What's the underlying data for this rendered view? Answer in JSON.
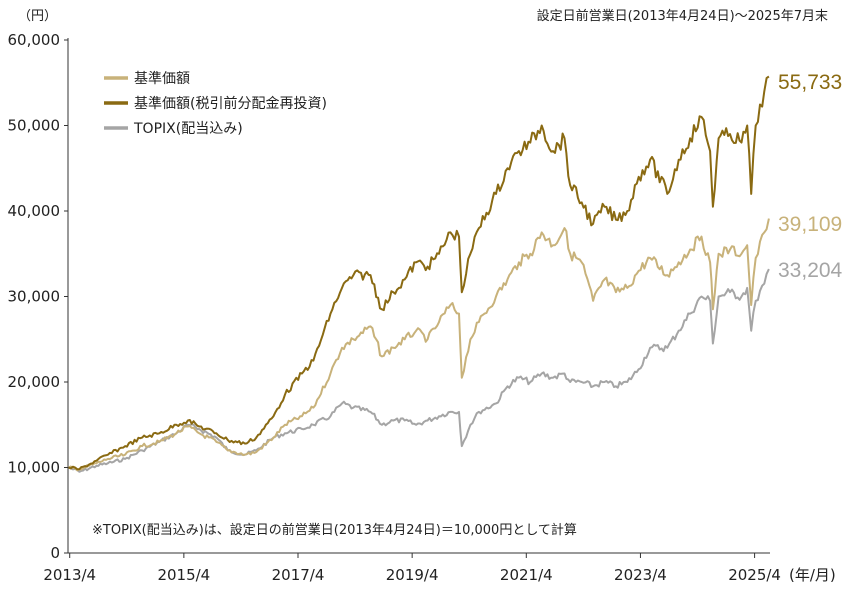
{
  "chart_data": {
    "type": "line",
    "y_unit_label": "（円）",
    "period_note": "設定日前営業日(2013年4月24日)～2025年7月末",
    "footnote": "※TOPIX(配当込み)は、設定日の前営業日(2013年4月24日)＝10,000円として計算",
    "x_unit_label": "(年/月)",
    "ylim": [
      0,
      60000
    ],
    "xlim": [
      2013.3,
      2025.6
    ],
    "y_ticks": [
      0,
      10000,
      20000,
      30000,
      40000,
      50000,
      60000
    ],
    "y_tick_labels": [
      "0",
      "10,000",
      "20,000",
      "30,000",
      "40,000",
      "50,000",
      "60,000"
    ],
    "x_ticks": [
      2013.33,
      2015.33,
      2017.33,
      2019.33,
      2021.33,
      2023.33,
      2025.33
    ],
    "x_tick_labels": [
      "2013/4",
      "2015/4",
      "2017/4",
      "2019/4",
      "2021/4",
      "2023/4",
      "2025/4"
    ],
    "series": [
      {
        "name": "基準価額",
        "color": "#c8b27a",
        "end_label": "39,109",
        "x": [
          2013.31,
          2013.5,
          2013.8,
          2014.0,
          2014.3,
          2014.6,
          2014.9,
          2015.2,
          2015.4,
          2015.6,
          2015.9,
          2016.1,
          2016.4,
          2016.6,
          2016.9,
          2017.1,
          2017.4,
          2017.6,
          2017.9,
          2018.1,
          2018.3,
          2018.6,
          2018.8,
          2019.0,
          2019.2,
          2019.4,
          2019.6,
          2019.8,
          2020.0,
          2020.15,
          2020.2,
          2020.35,
          2020.5,
          2020.8,
          2021.0,
          2021.2,
          2021.4,
          2021.6,
          2021.8,
          2022.0,
          2022.1,
          2022.3,
          2022.5,
          2022.7,
          2022.9,
          2023.1,
          2023.3,
          2023.5,
          2023.8,
          2024.0,
          2024.2,
          2024.4,
          2024.55,
          2024.6,
          2024.7,
          2024.9,
          2025.1,
          2025.2,
          2025.27,
          2025.35,
          2025.5,
          2025.58
        ],
        "values": [
          10000,
          9800,
          10500,
          11000,
          11500,
          12500,
          13000,
          14000,
          14800,
          14000,
          13000,
          12000,
          11500,
          11800,
          13500,
          15000,
          16000,
          17000,
          21000,
          24000,
          25000,
          26500,
          23000,
          24000,
          25000,
          26000,
          25000,
          27000,
          29000,
          28000,
          20500,
          25000,
          27000,
          30000,
          32000,
          34000,
          35000,
          37500,
          36000,
          38000,
          35000,
          34000,
          29500,
          32000,
          30500,
          31000,
          33000,
          34500,
          32500,
          34000,
          35500,
          37000,
          34000,
          28500,
          35000,
          35500,
          35000,
          36000,
          29000,
          34500,
          37500,
          39109
        ]
      },
      {
        "name": "基準価額(税引前分配金再投資)",
        "color": "#8a6a12",
        "end_label": "55,733",
        "x": [
          2013.31,
          2013.5,
          2013.8,
          2014.0,
          2014.3,
          2014.6,
          2014.9,
          2015.2,
          2015.4,
          2015.6,
          2015.9,
          2016.1,
          2016.4,
          2016.6,
          2016.9,
          2017.1,
          2017.4,
          2017.6,
          2017.9,
          2018.1,
          2018.3,
          2018.6,
          2018.8,
          2019.0,
          2019.2,
          2019.4,
          2019.6,
          2019.8,
          2020.0,
          2020.15,
          2020.2,
          2020.35,
          2020.5,
          2020.8,
          2021.0,
          2021.2,
          2021.4,
          2021.6,
          2021.8,
          2022.0,
          2022.1,
          2022.3,
          2022.5,
          2022.7,
          2022.9,
          2023.1,
          2023.3,
          2023.5,
          2023.8,
          2024.0,
          2024.2,
          2024.4,
          2024.55,
          2024.6,
          2024.7,
          2024.9,
          2025.1,
          2025.2,
          2025.27,
          2025.35,
          2025.5,
          2025.58
        ],
        "values": [
          10000,
          9800,
          10800,
          11500,
          12500,
          13500,
          14000,
          15000,
          15500,
          14800,
          14000,
          13200,
          12800,
          13500,
          16000,
          18500,
          21000,
          22500,
          28000,
          31000,
          32500,
          32500,
          28500,
          30500,
          32000,
          34000,
          33500,
          35000,
          37500,
          37000,
          30500,
          35000,
          38000,
          42000,
          45000,
          47000,
          48000,
          50000,
          47000,
          48500,
          43000,
          41000,
          38500,
          40500,
          39000,
          40000,
          44000,
          46000,
          42000,
          46000,
          48500,
          51000,
          47000,
          40500,
          48500,
          49000,
          48000,
          50000,
          42000,
          50000,
          54000,
          55733
        ]
      },
      {
        "name": "TOPIX(配当込み)",
        "color": "#a5a5a5",
        "end_label": "33,204",
        "x": [
          2013.31,
          2013.5,
          2013.8,
          2014.0,
          2014.3,
          2014.6,
          2014.9,
          2015.2,
          2015.4,
          2015.6,
          2015.9,
          2016.1,
          2016.4,
          2016.6,
          2016.9,
          2017.1,
          2017.4,
          2017.6,
          2017.9,
          2018.1,
          2018.3,
          2018.6,
          2018.8,
          2019.0,
          2019.2,
          2019.4,
          2019.6,
          2019.8,
          2020.0,
          2020.15,
          2020.2,
          2020.35,
          2020.5,
          2020.8,
          2021.0,
          2021.2,
          2021.4,
          2021.6,
          2021.8,
          2022.0,
          2022.1,
          2022.3,
          2022.5,
          2022.7,
          2022.9,
          2023.1,
          2023.3,
          2023.5,
          2023.8,
          2024.0,
          2024.2,
          2024.4,
          2024.55,
          2024.6,
          2024.7,
          2024.9,
          2025.1,
          2025.2,
          2025.27,
          2025.35,
          2025.5,
          2025.58
        ],
        "values": [
          10000,
          9500,
          10200,
          10500,
          11000,
          12000,
          13000,
          14000,
          15000,
          14500,
          13500,
          12000,
          11500,
          12000,
          13500,
          14000,
          14500,
          15000,
          16000,
          17500,
          17000,
          16500,
          15000,
          15500,
          15500,
          15000,
          15500,
          16000,
          16500,
          16500,
          12500,
          15000,
          16500,
          17500,
          19500,
          20500,
          20000,
          21000,
          20500,
          21000,
          20000,
          20000,
          19500,
          20000,
          19500,
          20000,
          21500,
          24000,
          24000,
          26000,
          28000,
          30000,
          29500,
          24500,
          30000,
          30500,
          30000,
          31000,
          26000,
          29500,
          31500,
          33204
        ]
      }
    ]
  }
}
